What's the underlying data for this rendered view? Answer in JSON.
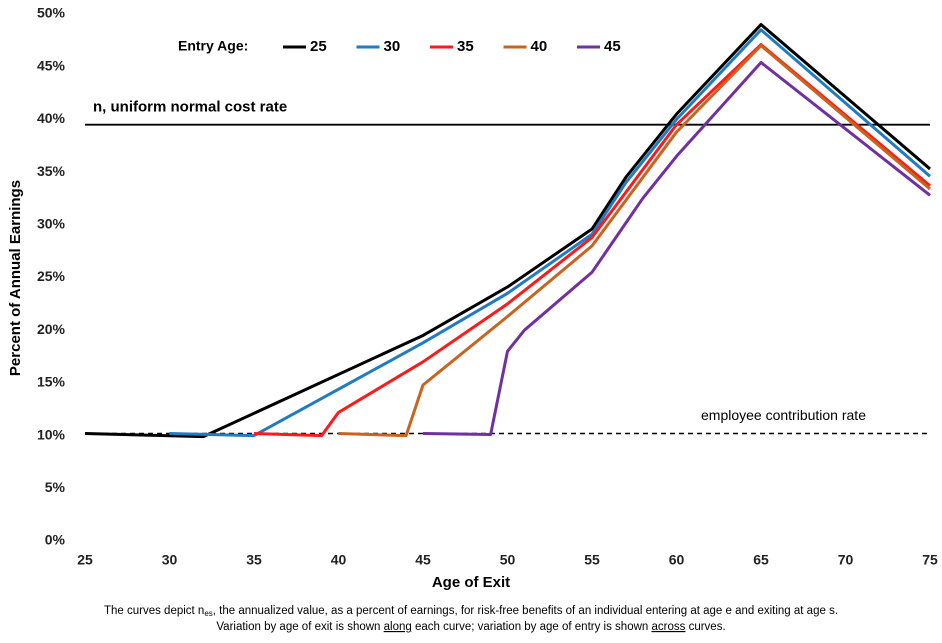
{
  "chart_data": {
    "type": "line",
    "xlabel": "Age of Exit",
    "ylabel": "Percent of Annual Earnings",
    "legend_title": "Entry Age:",
    "legend": "top",
    "grid": false,
    "xlim": [
      25,
      75
    ],
    "xticks": [
      25,
      30,
      35,
      40,
      45,
      50,
      55,
      60,
      65,
      70,
      75
    ],
    "ylim": [
      0,
      50
    ],
    "yticks": [
      {
        "value": 0,
        "label": "0%"
      },
      {
        "value": 5,
        "label": "5%"
      },
      {
        "value": 10,
        "label": "10%"
      },
      {
        "value": 15,
        "label": "15%"
      },
      {
        "value": 20,
        "label": "20%"
      },
      {
        "value": 25,
        "label": "25%"
      },
      {
        "value": 30,
        "label": "30%"
      },
      {
        "value": 35,
        "label": "35%"
      },
      {
        "value": 40,
        "label": "40%"
      },
      {
        "value": 45,
        "label": "45%"
      },
      {
        "value": 50,
        "label": "50%"
      }
    ],
    "series": [
      {
        "name": "25",
        "color": "#000000",
        "x": [
          25,
          32,
          45,
          50,
          55,
          57,
          60,
          65,
          75
        ],
        "values": [
          10.2,
          9.9,
          19.5,
          24.1,
          29.6,
          34.5,
          40.5,
          49.0,
          35.3
        ]
      },
      {
        "name": "30",
        "color": "#1f7bc4",
        "x": [
          30,
          35,
          45,
          50,
          55,
          57,
          60,
          65,
          75
        ],
        "values": [
          10.2,
          10.0,
          18.8,
          23.5,
          29.1,
          34.0,
          40.0,
          48.5,
          34.6
        ]
      },
      {
        "name": "35",
        "color": "#ff1a1a",
        "x": [
          35,
          39,
          40,
          45,
          50,
          55,
          60,
          65,
          75
        ],
        "values": [
          10.2,
          10.0,
          12.2,
          17.0,
          22.5,
          28.8,
          39.5,
          47.1,
          33.7
        ]
      },
      {
        "name": "40",
        "color": "#c8641e",
        "x": [
          40,
          44,
          45,
          50,
          55,
          60,
          65,
          75
        ],
        "values": [
          10.2,
          10.0,
          14.8,
          21.3,
          28.0,
          38.8,
          47.0,
          33.4
        ]
      },
      {
        "name": "45",
        "color": "#7030a0",
        "x": [
          45,
          49,
          50,
          51,
          55,
          58,
          60,
          65,
          75
        ],
        "values": [
          10.2,
          10.1,
          18.0,
          20.0,
          25.5,
          32.5,
          36.5,
          45.4,
          32.8
        ]
      }
    ],
    "reference_lines": [
      {
        "label": "n, uniform normal cost rate",
        "value": 39.5,
        "dashed": false,
        "align": "left"
      },
      {
        "label": "employee contribution rate",
        "value": 10.2,
        "dashed": true,
        "align": "right"
      }
    ],
    "caption": {
      "line1": [
        "The curves depict n",
        "es",
        ", the annualized value, as a percent of earnings, for risk-free benefits of an individual entering at age e and exiting at age s."
      ],
      "line2": [
        "Variation by age of exit is shown ",
        "along",
        " each curve;  variation by age of entry is shown ",
        "across",
        " curves."
      ]
    }
  }
}
